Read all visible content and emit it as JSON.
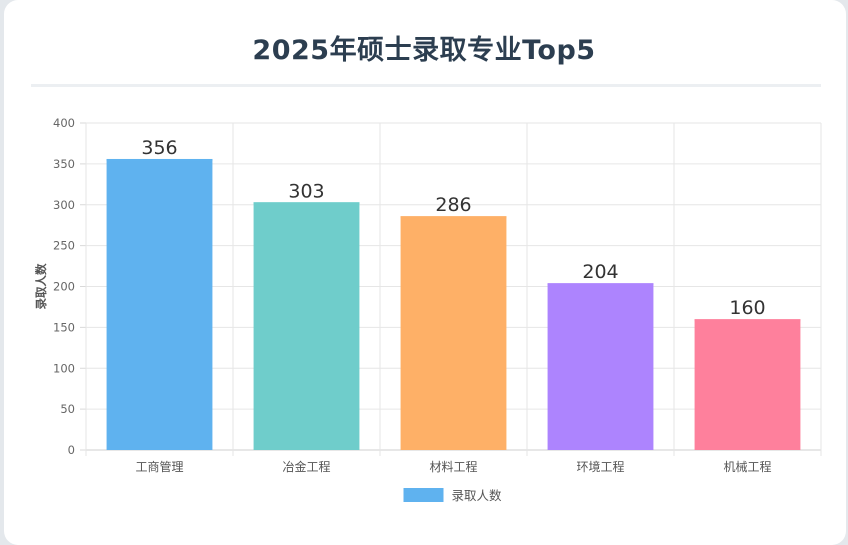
{
  "title": "2025年硕士录取专业Top5",
  "chart_data": {
    "type": "bar",
    "title": "2025年硕士录取专业Top5",
    "categories": [
      "工商管理",
      "冶金工程",
      "材料工程",
      "环境工程",
      "机械工程"
    ],
    "series": [
      {
        "name": "录取人数",
        "values": [
          356,
          303,
          286,
          204,
          160
        ],
        "colors": [
          "#5fb2ef",
          "#6fcdcb",
          "#feb067",
          "#ad84fe",
          "#fe809c"
        ]
      }
    ],
    "ylabel": "录取人数",
    "xlabel": "",
    "ylim": [
      0,
      400
    ],
    "yticks": [
      0,
      50,
      100,
      150,
      200,
      250,
      300,
      350,
      400
    ],
    "grid": true,
    "legend": "bottom",
    "data_labels": true,
    "legend_color": "#5fb2ef"
  }
}
